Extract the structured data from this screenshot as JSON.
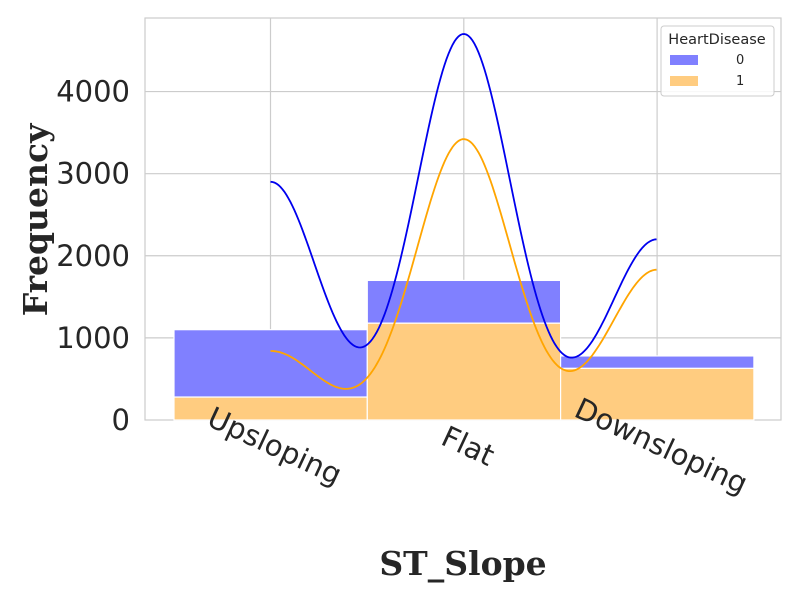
{
  "chart_data": {
    "type": "bar",
    "stacked": true,
    "xlabel": "ST_Slope",
    "ylabel": "Frequency",
    "categories": [
      "Upsloping",
      "Flat",
      "Downsloping"
    ],
    "ylim": [
      0,
      4900
    ],
    "yticks": [
      0,
      1000,
      2000,
      3000,
      4000
    ],
    "series": [
      {
        "name": "0",
        "color": "#8080ff",
        "line_color": "#0000ee",
        "values": [
          820,
          520,
          150
        ]
      },
      {
        "name": "1",
        "color": "#ffcc80",
        "line_color": "#ffa500",
        "values": [
          280,
          1180,
          630
        ]
      }
    ],
    "kde": [
      {
        "series": "0",
        "peaks": [
          2900,
          4700,
          2200
        ]
      },
      {
        "series": "1",
        "peaks": [
          840,
          3420,
          1830
        ]
      }
    ],
    "legend": {
      "title": "HeartDisease",
      "position": "top-right"
    },
    "grid": true
  }
}
